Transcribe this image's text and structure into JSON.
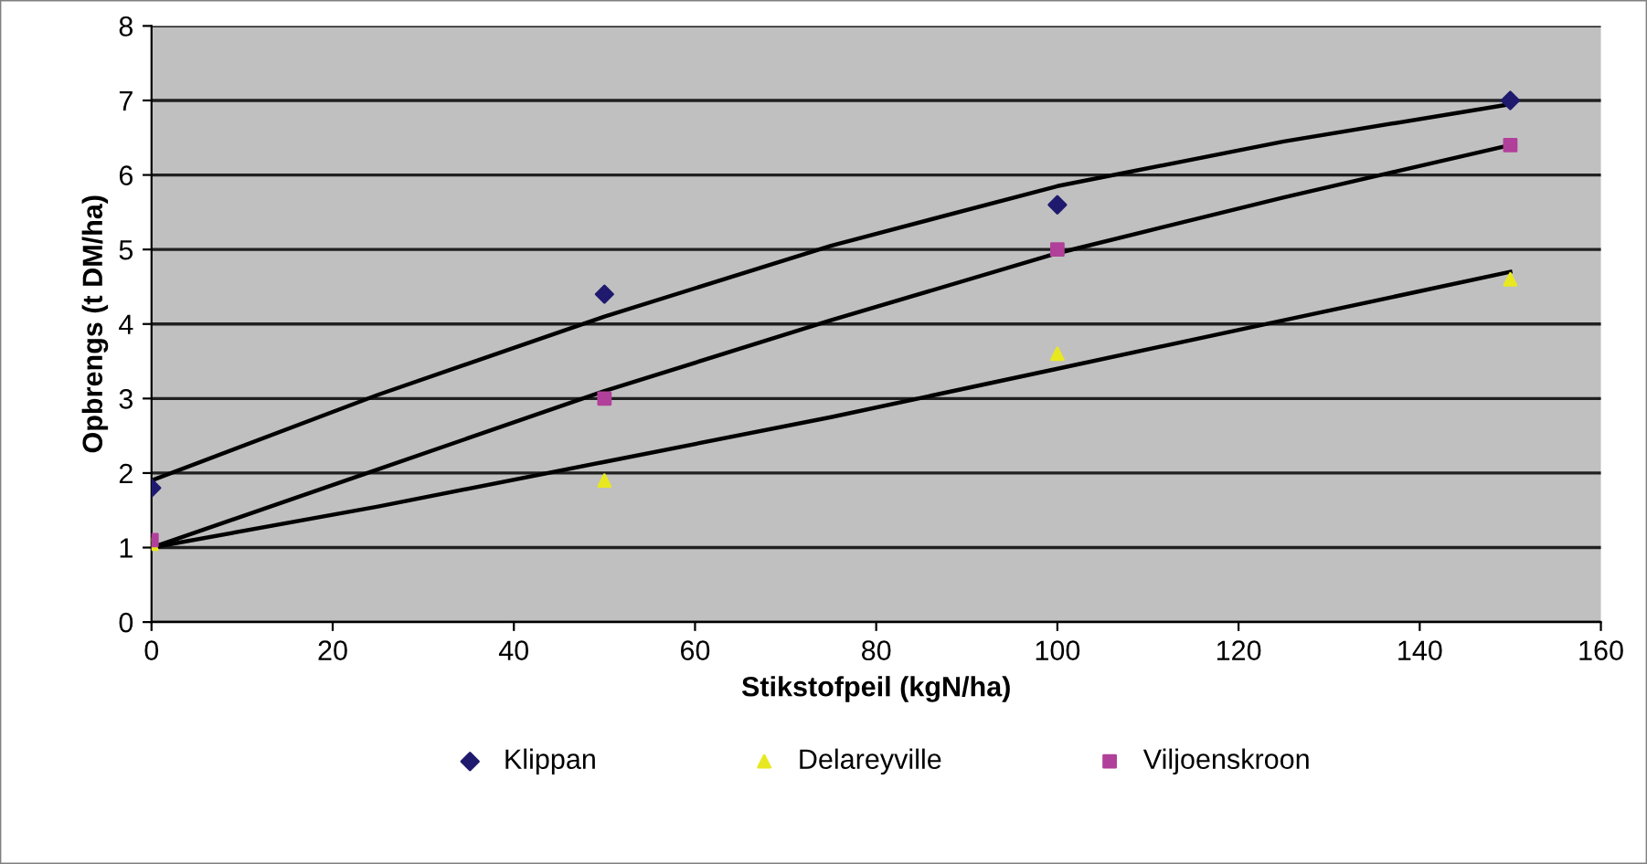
{
  "chart_data": {
    "type": "scatter",
    "xlabel": "Stikstofpeil (kgN/ha)",
    "ylabel": "Opbrengs (t DM/ha)",
    "xlim": [
      0,
      160
    ],
    "xticks": [
      0,
      20,
      40,
      60,
      80,
      100,
      120,
      140,
      160
    ],
    "ylim": [
      0,
      8
    ],
    "yticks": [
      0,
      1,
      2,
      3,
      4,
      5,
      6,
      7,
      8
    ],
    "grid": "y",
    "legend": "bottom",
    "series": [
      {
        "name": "Klippan",
        "color": "#1f1a6e",
        "marker": "diamond",
        "x": [
          0,
          50,
          100,
          150
        ],
        "values": [
          1.8,
          4.4,
          5.6,
          7.0
        ]
      },
      {
        "name": "Delareyville",
        "color": "#e8e820",
        "marker": "triangle",
        "x": [
          0,
          50,
          100,
          150
        ],
        "values": [
          1.05,
          1.9,
          3.6,
          4.6
        ]
      },
      {
        "name": "Viljoenskroon",
        "color": "#b0409a",
        "marker": "square",
        "x": [
          0,
          50,
          100,
          150
        ],
        "values": [
          1.1,
          3.0,
          5.0,
          6.4
        ]
      },
      {
        "type": "line",
        "color": "#000000",
        "x": [
          0,
          25,
          50,
          75,
          100,
          125,
          150
        ],
        "values": [
          1.9,
          3.05,
          4.1,
          5.05,
          5.85,
          6.45,
          6.95
        ]
      },
      {
        "type": "line",
        "color": "#000000",
        "x": [
          0,
          25,
          50,
          75,
          100,
          125,
          150
        ],
        "values": [
          1.0,
          2.05,
          3.1,
          4.05,
          4.95,
          5.7,
          6.4
        ]
      },
      {
        "type": "line",
        "color": "#000000",
        "x": [
          0,
          25,
          50,
          75,
          100,
          125,
          150
        ],
        "values": [
          1.0,
          1.55,
          2.15,
          2.75,
          3.4,
          4.05,
          4.7
        ]
      }
    ]
  }
}
